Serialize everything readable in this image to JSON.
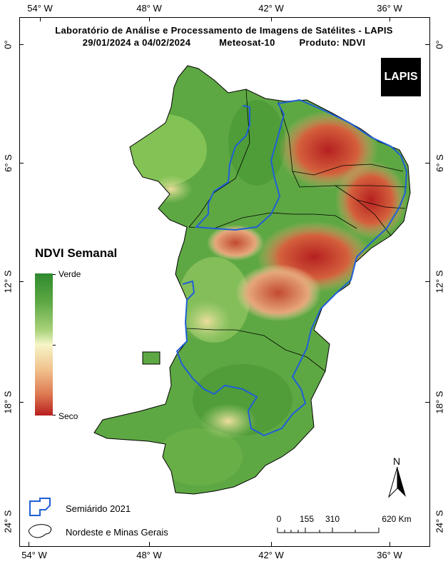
{
  "header": {
    "title": "Laboratório de Análise e Processamento de Imagens de Satélites - LAPIS",
    "date_range": "29/01/2024  a  04/02/2024",
    "satellite": "Meteosat-10",
    "product": "Produto: NDVI"
  },
  "axes": {
    "longitude_ticks": [
      "54° W",
      "48° W",
      "42° W",
      "36° W"
    ],
    "latitude_ticks": [
      "0°",
      "6° S",
      "12° S",
      "18° S",
      "24° S"
    ]
  },
  "logo": {
    "text": "LAPIS"
  },
  "legend": {
    "title": "NDVI Semanal",
    "top_label": "Verde",
    "bottom_label": "Seco",
    "colors": {
      "green": "#2e8a2e",
      "yellow": "#f6f6c8",
      "red": "#b81f1f"
    }
  },
  "map_legend": {
    "semiarid": "Semiárido 2021",
    "region": "Nordeste e Minas Gerais",
    "semiarid_color": "#1f5fd6"
  },
  "scale_bar": {
    "labels": [
      "0",
      "155",
      "310",
      "620 Km"
    ]
  },
  "north_arrow": {
    "label": "N"
  }
}
